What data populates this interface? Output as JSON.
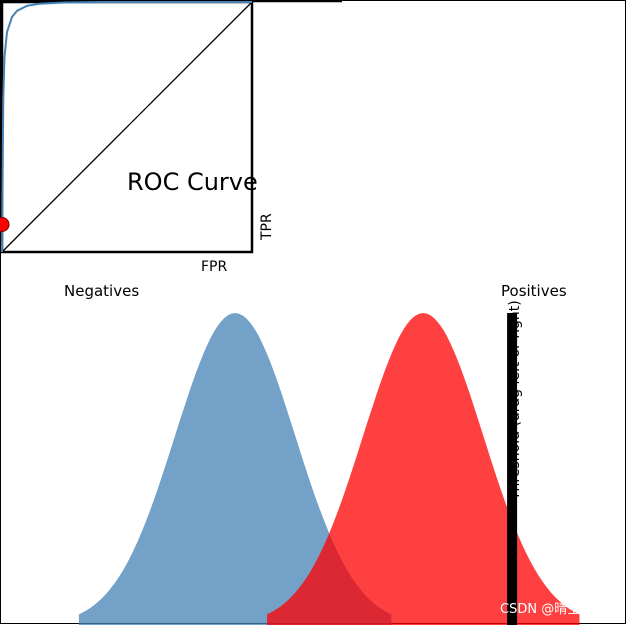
{
  "chart_data": [
    {
      "type": "line",
      "title": "ROC Curve",
      "xlabel": "FPR",
      "ylabel": "TPR",
      "xlim": [
        0,
        1
      ],
      "ylim": [
        0,
        1
      ],
      "series": [
        {
          "x": [
            0,
            0.005,
            0.01,
            0.02,
            0.04,
            0.06,
            0.1,
            0.15,
            0.25,
            0.4,
            0.6,
            0.8,
            1.0
          ],
          "y": [
            0,
            0.62,
            0.78,
            0.88,
            0.94,
            0.965,
            0.985,
            0.993,
            0.998,
            1.0,
            1.0,
            1.0,
            1.0
          ]
        },
        {
          "x": [
            0,
            1
          ],
          "y": [
            0,
            1
          ]
        }
      ],
      "colors": {
        "roc": "#4682b4",
        "diagonal": "#000000",
        "point": "#ff0000"
      },
      "operating_point": {
        "fpr": 0.0,
        "tpr": 0.11
      }
    },
    {
      "type": "area",
      "xlim": [
        -4.5,
        7.5
      ],
      "series": [
        {
          "name": "Negatives",
          "mean": 0,
          "sd": 1.15,
          "color": "#4682b4",
          "opacity": 0.75
        },
        {
          "name": "Positives",
          "mean": 3.6,
          "sd": 1.15,
          "color": "#ff0000",
          "opacity": 0.75
        }
      ],
      "threshold": {
        "value": 5.3,
        "label": "Threshold (drag left or right)"
      }
    }
  ],
  "watermark": "CSDN @晴空^_^"
}
